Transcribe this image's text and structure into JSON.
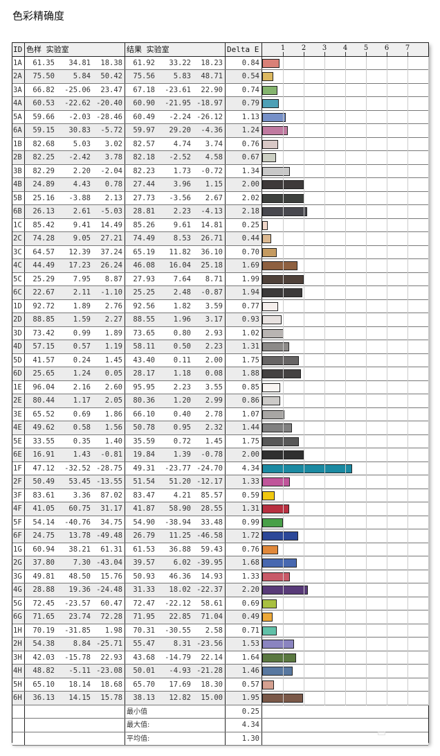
{
  "title": "色彩精确度",
  "headers": {
    "id": "ID",
    "sample": "色样 实验室",
    "result": "结果 实验室",
    "delta": "Delta E"
  },
  "watermark": "小黑盒",
  "summary": [
    {
      "label": "最小值",
      "value": "0.25"
    },
    {
      "label": "最大值:",
      "value": "4.34"
    },
    {
      "label": "平均值:",
      "value": "1.30"
    }
  ],
  "chart_data": {
    "type": "bar",
    "title": "色彩精确度",
    "xlabel": "Delta E",
    "xlim": [
      0,
      8
    ],
    "ticks": [
      "1",
      "2",
      "3",
      "4",
      "5",
      "6",
      "7"
    ],
    "rows": [
      {
        "id": "1A",
        "s": [
          "61.35",
          "34.81",
          "18.38"
        ],
        "r": [
          "61.92",
          "33.22",
          "18.23"
        ],
        "de": 0.84,
        "color": "#d98077"
      },
      {
        "id": "2A",
        "s": [
          "75.50",
          "5.84",
          "50.42"
        ],
        "r": [
          "75.56",
          "5.83",
          "48.71"
        ],
        "de": 0.54,
        "color": "#dcb860"
      },
      {
        "id": "3A",
        "s": [
          "66.82",
          "-25.06",
          "23.47"
        ],
        "r": [
          "67.18",
          "-23.61",
          "22.90"
        ],
        "de": 0.74,
        "color": "#84b46e"
      },
      {
        "id": "4A",
        "s": [
          "60.53",
          "-22.62",
          "-20.40"
        ],
        "r": [
          "60.90",
          "-21.95",
          "-18.97"
        ],
        "de": 0.79,
        "color": "#4ea0b6"
      },
      {
        "id": "5A",
        "s": [
          "59.66",
          "-2.03",
          "-28.46"
        ],
        "r": [
          "60.49",
          "-2.24",
          "-26.12"
        ],
        "de": 1.13,
        "color": "#7690c8"
      },
      {
        "id": "6A",
        "s": [
          "59.15",
          "30.83",
          "-5.72"
        ],
        "r": [
          "59.97",
          "29.20",
          "-4.36"
        ],
        "de": 1.24,
        "color": "#c07aa0"
      },
      {
        "id": "1B",
        "s": [
          "82.68",
          "5.03",
          "3.02"
        ],
        "r": [
          "82.57",
          "4.74",
          "3.74"
        ],
        "de": 0.76,
        "color": "#d8c8c6"
      },
      {
        "id": "2B",
        "s": [
          "82.25",
          "-2.42",
          "3.78"
        ],
        "r": [
          "82.18",
          "-2.52",
          "4.58"
        ],
        "de": 0.67,
        "color": "#ccd0c4"
      },
      {
        "id": "3B",
        "s": [
          "82.29",
          "2.20",
          "-2.04"
        ],
        "r": [
          "82.23",
          "1.73",
          "-0.72"
        ],
        "de": 1.34,
        "color": "#c8c8c8"
      },
      {
        "id": "4B",
        "s": [
          "24.89",
          "4.43",
          "0.78"
        ],
        "r": [
          "27.44",
          "3.96",
          "1.15"
        ],
        "de": 2.0,
        "color": "#3e3a3a"
      },
      {
        "id": "5B",
        "s": [
          "25.16",
          "-3.88",
          "2.13"
        ],
        "r": [
          "27.73",
          "-3.56",
          "2.67"
        ],
        "de": 2.02,
        "color": "#3c3f3c"
      },
      {
        "id": "6B",
        "s": [
          "26.13",
          "2.61",
          "-5.03"
        ],
        "r": [
          "28.81",
          "2.23",
          "-4.13"
        ],
        "de": 2.18,
        "color": "#48484e"
      },
      {
        "id": "1C",
        "s": [
          "85.42",
          "9.41",
          "14.49"
        ],
        "r": [
          "85.26",
          "9.61",
          "14.81"
        ],
        "de": 0.25,
        "color": "#f0d6c8"
      },
      {
        "id": "2C",
        "s": [
          "74.28",
          "9.05",
          "27.21"
        ],
        "r": [
          "74.49",
          "8.53",
          "26.71"
        ],
        "de": 0.44,
        "color": "#dcb890"
      },
      {
        "id": "3C",
        "s": [
          "64.57",
          "12.39",
          "37.24"
        ],
        "r": [
          "65.19",
          "11.82",
          "36.10"
        ],
        "de": 0.7,
        "color": "#c49a60"
      },
      {
        "id": "4C",
        "s": [
          "44.49",
          "17.23",
          "26.24"
        ],
        "r": [
          "46.08",
          "16.04",
          "25.18"
        ],
        "de": 1.69,
        "color": "#8e6040"
      },
      {
        "id": "5C",
        "s": [
          "25.29",
          "7.95",
          "8.87"
        ],
        "r": [
          "27.93",
          "7.64",
          "8.71"
        ],
        "de": 1.99,
        "color": "#4e4038"
      },
      {
        "id": "6C",
        "s": [
          "22.67",
          "2.11",
          "-1.10"
        ],
        "r": [
          "25.25",
          "2.48",
          "-0.87"
        ],
        "de": 1.94,
        "color": "#3c3a3a"
      },
      {
        "id": "1D",
        "s": [
          "92.72",
          "1.89",
          "2.76"
        ],
        "r": [
          "92.56",
          "1.82",
          "3.59"
        ],
        "de": 0.77,
        "color": "#f4eeec"
      },
      {
        "id": "2D",
        "s": [
          "88.85",
          "1.59",
          "2.27"
        ],
        "r": [
          "88.55",
          "1.96",
          "3.17"
        ],
        "de": 0.93,
        "color": "#e8e2e0"
      },
      {
        "id": "3D",
        "s": [
          "73.42",
          "0.99",
          "1.89"
        ],
        "r": [
          "73.65",
          "0.80",
          "2.93"
        ],
        "de": 1.02,
        "color": "#b8b4b2"
      },
      {
        "id": "4D",
        "s": [
          "57.15",
          "0.57",
          "1.19"
        ],
        "r": [
          "58.11",
          "0.50",
          "2.23"
        ],
        "de": 1.31,
        "color": "#8c8a88"
      },
      {
        "id": "5D",
        "s": [
          "41.57",
          "0.24",
          "1.45"
        ],
        "r": [
          "43.40",
          "0.11",
          "2.00"
        ],
        "de": 1.75,
        "color": "#666464"
      },
      {
        "id": "6D",
        "s": [
          "25.65",
          "1.24",
          "0.05"
        ],
        "r": [
          "28.17",
          "1.18",
          "0.08"
        ],
        "de": 1.88,
        "color": "#444242"
      },
      {
        "id": "1E",
        "s": [
          "96.04",
          "2.16",
          "2.60"
        ],
        "r": [
          "95.95",
          "2.23",
          "3.55"
        ],
        "de": 0.85,
        "color": "#f8f4f2"
      },
      {
        "id": "2E",
        "s": [
          "80.44",
          "1.17",
          "2.05"
        ],
        "r": [
          "80.36",
          "1.20",
          "2.99"
        ],
        "de": 0.86,
        "color": "#cccac8"
      },
      {
        "id": "3E",
        "s": [
          "65.52",
          "0.69",
          "1.86"
        ],
        "r": [
          "66.10",
          "0.40",
          "2.78"
        ],
        "de": 1.07,
        "color": "#a8a6a4"
      },
      {
        "id": "4E",
        "s": [
          "49.62",
          "0.58",
          "1.56"
        ],
        "r": [
          "50.78",
          "0.95",
          "2.32"
        ],
        "de": 1.44,
        "color": "#808080"
      },
      {
        "id": "5E",
        "s": [
          "33.55",
          "0.35",
          "1.40"
        ],
        "r": [
          "35.59",
          "0.72",
          "1.45"
        ],
        "de": 1.75,
        "color": "#585858"
      },
      {
        "id": "6E",
        "s": [
          "16.91",
          "1.43",
          "-0.81"
        ],
        "r": [
          "19.84",
          "1.39",
          "-0.78"
        ],
        "de": 2.0,
        "color": "#303030"
      },
      {
        "id": "1F",
        "s": [
          "47.12",
          "-32.52",
          "-28.75"
        ],
        "r": [
          "49.31",
          "-23.77",
          "-24.70"
        ],
        "de": 4.34,
        "color": "#1b8aa2"
      },
      {
        "id": "2F",
        "s": [
          "50.49",
          "53.45",
          "-13.55"
        ],
        "r": [
          "51.54",
          "51.20",
          "-12.17"
        ],
        "de": 1.33,
        "color": "#c0559a"
      },
      {
        "id": "3F",
        "s": [
          "83.61",
          "3.36",
          "87.02"
        ],
        "r": [
          "83.47",
          "4.21",
          "85.57"
        ],
        "de": 0.59,
        "color": "#f0c810"
      },
      {
        "id": "4F",
        "s": [
          "41.05",
          "60.75",
          "31.17"
        ],
        "r": [
          "41.87",
          "58.90",
          "28.55"
        ],
        "de": 1.31,
        "color": "#b83040"
      },
      {
        "id": "5F",
        "s": [
          "54.14",
          "-40.76",
          "34.75"
        ],
        "r": [
          "54.90",
          "-38.94",
          "33.48"
        ],
        "de": 0.99,
        "color": "#48a048"
      },
      {
        "id": "6F",
        "s": [
          "24.75",
          "13.78",
          "-49.48"
        ],
        "r": [
          "26.79",
          "11.25",
          "-46.58"
        ],
        "de": 1.72,
        "color": "#2c4898"
      },
      {
        "id": "1G",
        "s": [
          "60.94",
          "38.21",
          "61.31"
        ],
        "r": [
          "61.53",
          "36.88",
          "59.43"
        ],
        "de": 0.76,
        "color": "#e0883a"
      },
      {
        "id": "2G",
        "s": [
          "37.80",
          "7.30",
          "-43.04"
        ],
        "r": [
          "39.57",
          "6.02",
          "-39.95"
        ],
        "de": 1.68,
        "color": "#4868b0"
      },
      {
        "id": "3G",
        "s": [
          "49.81",
          "48.50",
          "15.76"
        ],
        "r": [
          "50.93",
          "46.36",
          "14.93"
        ],
        "de": 1.33,
        "color": "#c85a68"
      },
      {
        "id": "4G",
        "s": [
          "28.88",
          "19.36",
          "-24.48"
        ],
        "r": [
          "31.33",
          "18.02",
          "-22.37"
        ],
        "de": 2.2,
        "color": "#583a78"
      },
      {
        "id": "5G",
        "s": [
          "72.45",
          "-23.57",
          "60.47"
        ],
        "r": [
          "72.47",
          "-22.12",
          "58.61"
        ],
        "de": 0.69,
        "color": "#a8c040"
      },
      {
        "id": "6G",
        "s": [
          "71.65",
          "23.74",
          "72.28"
        ],
        "r": [
          "71.95",
          "22.85",
          "71.04"
        ],
        "de": 0.49,
        "color": "#eca838"
      },
      {
        "id": "1H",
        "s": [
          "70.19",
          "-31.85",
          "1.98"
        ],
        "r": [
          "70.31",
          "-30.55",
          "2.58"
        ],
        "de": 0.71,
        "color": "#60c0a8"
      },
      {
        "id": "2H",
        "s": [
          "54.38",
          "8.84",
          "-25.71"
        ],
        "r": [
          "55.47",
          "8.31",
          "-23.56"
        ],
        "de": 1.53,
        "color": "#8a84c0"
      },
      {
        "id": "3H",
        "s": [
          "42.03",
          "-15.78",
          "22.93"
        ],
        "r": [
          "43.68",
          "-14.79",
          "22.14"
        ],
        "de": 1.64,
        "color": "#5a7840"
      },
      {
        "id": "4H",
        "s": [
          "48.82",
          "-5.11",
          "-23.08"
        ],
        "r": [
          "50.01",
          "-4.93",
          "-21.28"
        ],
        "de": 1.46,
        "color": "#5878a0"
      },
      {
        "id": "5H",
        "s": [
          "65.10",
          "18.14",
          "18.68"
        ],
        "r": [
          "65.70",
          "17.69",
          "18.30"
        ],
        "de": 0.57,
        "color": "#d4a090"
      },
      {
        "id": "6H",
        "s": [
          "36.13",
          "14.15",
          "15.78"
        ],
        "r": [
          "38.13",
          "12.82",
          "15.00"
        ],
        "de": 1.95,
        "color": "#7a5848"
      }
    ]
  }
}
